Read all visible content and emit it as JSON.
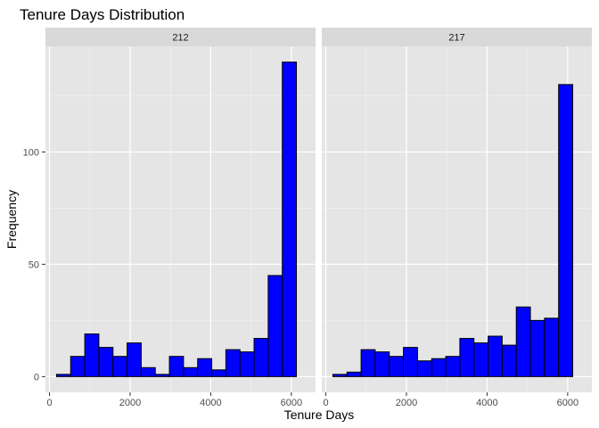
{
  "chart_data": {
    "type": "bar",
    "title": "Tenure Days Distribution",
    "xlabel": "Tenure Days",
    "ylabel": "Frequency",
    "xlim": [
      0,
      6500
    ],
    "ylim": [
      0,
      140
    ],
    "x_ticks": [
      0,
      2000,
      4000,
      6000
    ],
    "y_ticks": [
      0,
      50,
      100
    ],
    "grid": true,
    "bin_width": 350,
    "bin_start": 175,
    "bar_fill": "#0000ff",
    "bar_outline": "#000000",
    "panel_background": "#e5e5e5",
    "strip_background": "#d9d9d9",
    "facets": [
      {
        "label": "212",
        "values": [
          1,
          9,
          19,
          13,
          9,
          15,
          4,
          1,
          9,
          4,
          8,
          3,
          12,
          11,
          17,
          45,
          140
        ]
      },
      {
        "label": "217",
        "values": [
          1,
          2,
          12,
          11,
          9,
          13,
          7,
          8,
          9,
          17,
          15,
          18,
          14,
          31,
          25,
          26,
          130
        ]
      }
    ]
  }
}
